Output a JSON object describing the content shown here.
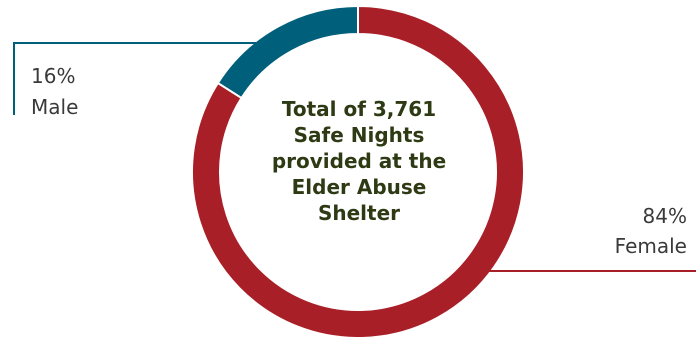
{
  "center_text": {
    "line1": "Total of 3,761",
    "line2": "Safe Nights",
    "line3": "provided at the",
    "line4": "Elder Abuse",
    "line5": "Shelter"
  },
  "chart_data": {
    "type": "pie",
    "donut": true,
    "slices": [
      {
        "name": "Male",
        "percent_label": "16%",
        "value": 16,
        "color": "#005f7a"
      },
      {
        "name": "Female",
        "percent_label": "84%",
        "value": 84,
        "color": "#a91f27"
      }
    ]
  }
}
